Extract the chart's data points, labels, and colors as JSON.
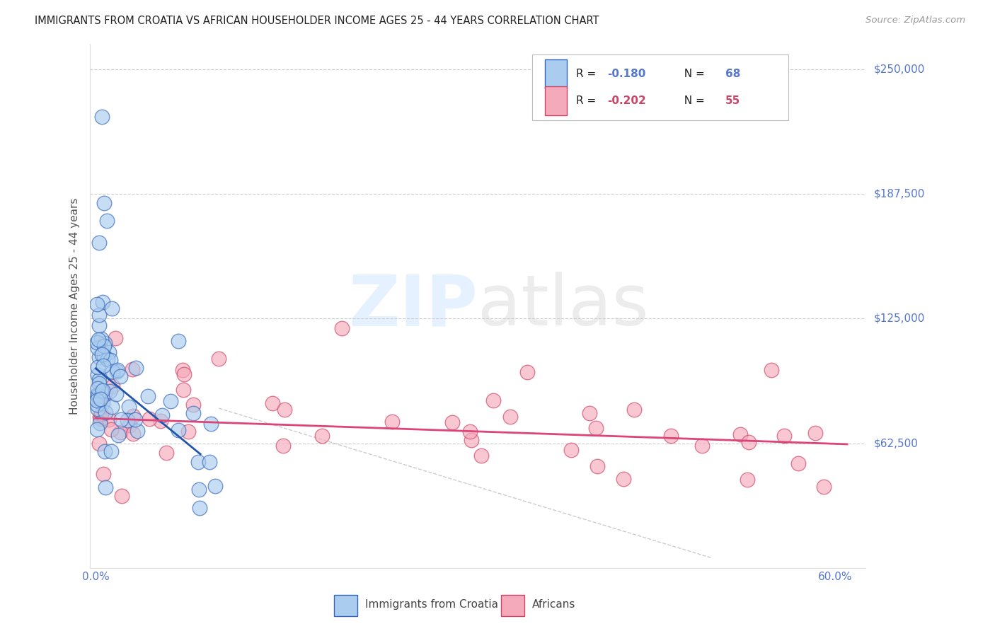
{
  "title": "IMMIGRANTS FROM CROATIA VS AFRICAN HOUSEHOLDER INCOME AGES 25 - 44 YEARS CORRELATION CHART",
  "source": "Source: ZipAtlas.com",
  "ylabel": "Householder Income Ages 25 - 44 years",
  "ylim": [
    0,
    262500
  ],
  "xlim": [
    -0.005,
    0.625
  ],
  "yticks": [
    0,
    62500,
    125000,
    187500,
    250000
  ],
  "ytick_labels": [
    "",
    "$62,500",
    "$125,000",
    "$187,500",
    "$250,000"
  ],
  "xticks": [
    0.0,
    0.1,
    0.2,
    0.3,
    0.4,
    0.5,
    0.6
  ],
  "xtick_labels": [
    "0.0%",
    "",
    "",
    "",
    "",
    "",
    "60.0%"
  ],
  "background_color": "#ffffff",
  "grid_color": "#cccccc",
  "croatia_fill": "#aaccee",
  "croatia_edge": "#3366bb",
  "african_fill": "#f5aabb",
  "african_edge": "#cc4466",
  "trend_croatia_color": "#2255aa",
  "trend_african_color": "#dd4477",
  "dash_color": "#aaaaaa",
  "croatia_R": -0.18,
  "croatia_N": 68,
  "african_R": -0.202,
  "african_N": 55,
  "legend_label_croatia": "Immigrants from Croatia",
  "legend_label_african": "Africans",
  "axis_color": "#5577cc",
  "title_color": "#222222",
  "source_color": "#999999",
  "ylabel_color": "#555555",
  "legend_text_color": "#222222",
  "legend_val_color": "#3366bb",
  "watermark_color": "#ddeeff",
  "watermark_color2": "#cccccc"
}
